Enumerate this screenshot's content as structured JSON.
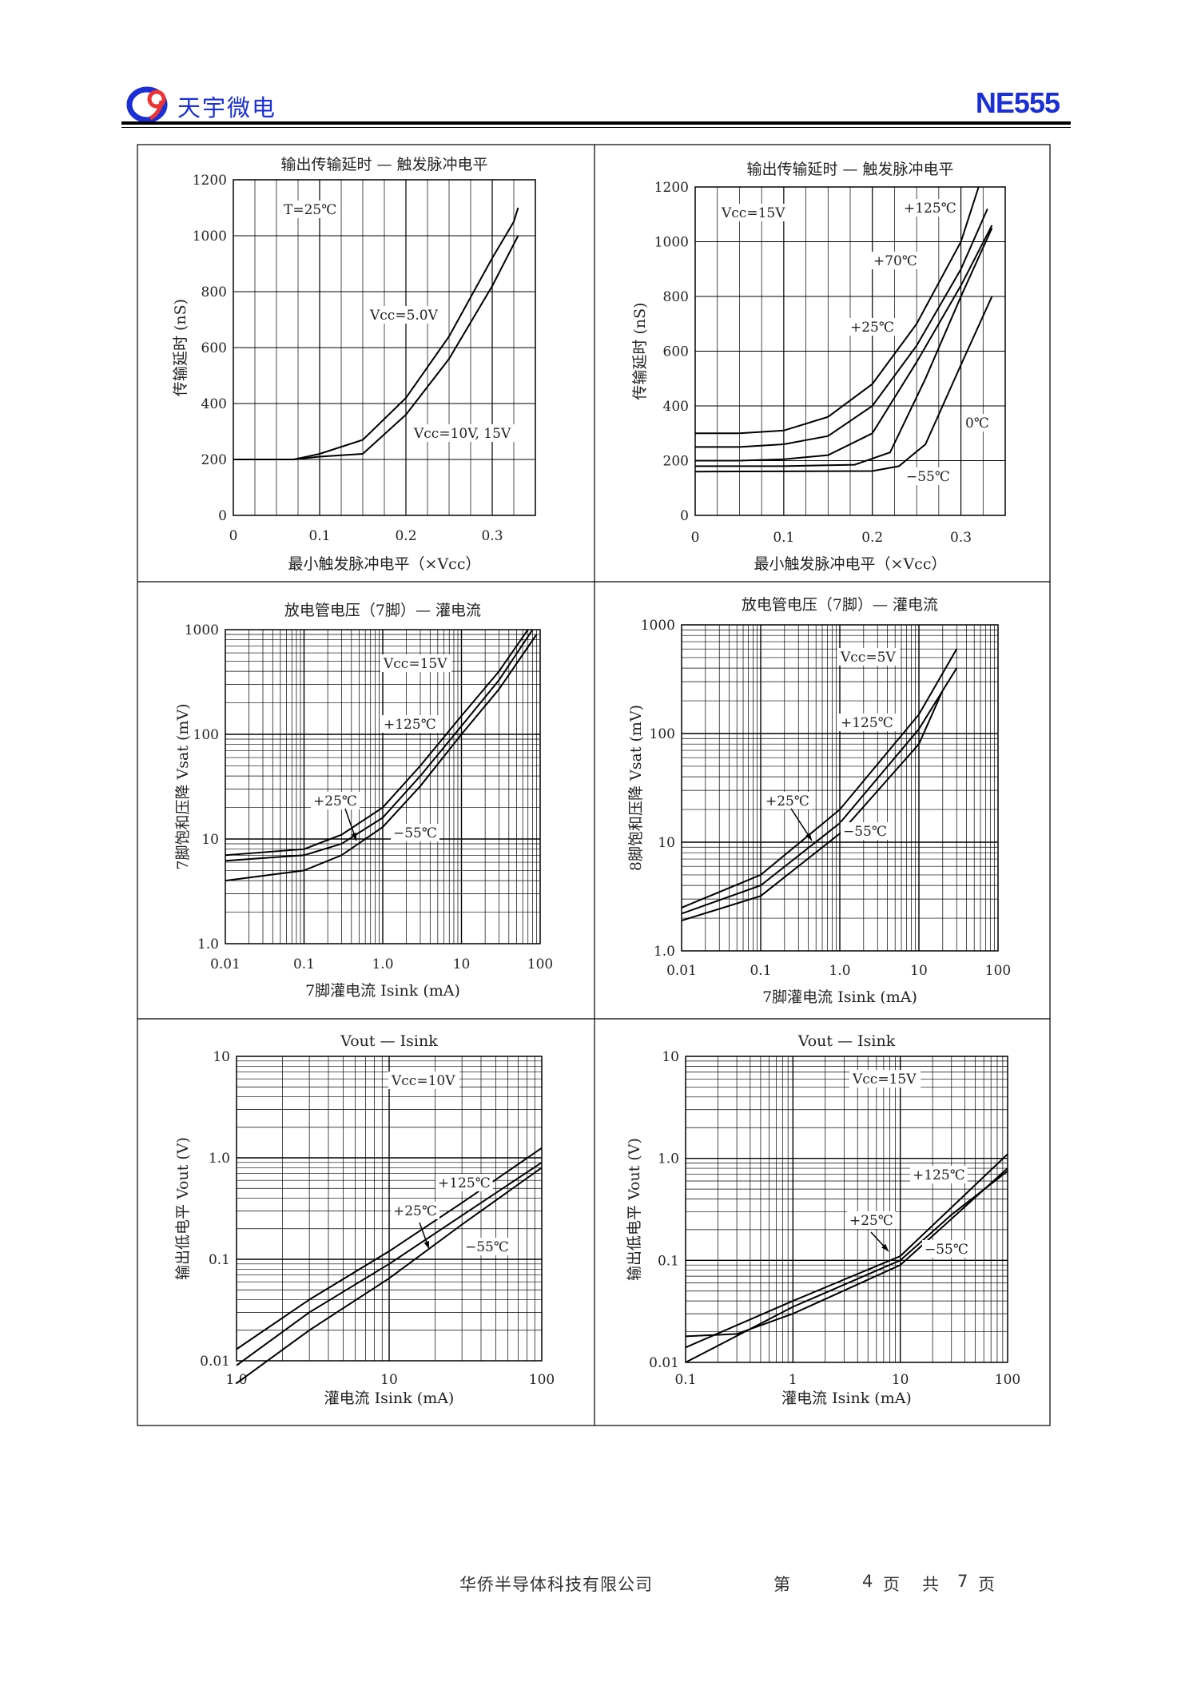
{
  "header": {
    "company": "天宇微电",
    "model": "NE555",
    "logo_icon": "company-logo-icon",
    "brand_color": "#1a2fd6"
  },
  "footer": {
    "text": "华侨半导体科技有限公司",
    "page_prefix": "第",
    "page": "4",
    "page_unit": "页",
    "total_prefix": "共",
    "total": "7",
    "total_unit": "页"
  },
  "chart_data": [
    {
      "type": "line",
      "title": "输出传输延时 — 触发脉冲电平",
      "xlabel": "最小触发脉冲电平（×Vcc）",
      "ylabel": "传输延时 (nS)",
      "xscale": "linear",
      "yscale": "linear",
      "xlim": [
        0,
        0.35
      ],
      "ylim": [
        0,
        1200
      ],
      "xticks": [
        "0",
        "0.1",
        "0.2",
        "0.3"
      ],
      "yticks": [
        "0",
        "200",
        "400",
        "600",
        "800",
        "1000",
        "1200"
      ],
      "condition": "T=25℃",
      "series": [
        {
          "name": "Vcc=5.0V",
          "points": [
            [
              0,
              200
            ],
            [
              0.07,
              200
            ],
            [
              0.1,
              220
            ],
            [
              0.15,
              270
            ],
            [
              0.2,
              420
            ],
            [
              0.25,
              640
            ],
            [
              0.3,
              920
            ],
            [
              0.325,
              1050
            ],
            [
              0.33,
              1100
            ]
          ]
        },
        {
          "name": "Vcc=10V, 15V",
          "points": [
            [
              0,
              200
            ],
            [
              0.07,
              200
            ],
            [
              0.1,
              210
            ],
            [
              0.15,
              220
            ],
            [
              0.2,
              360
            ],
            [
              0.25,
              560
            ],
            [
              0.3,
              820
            ],
            [
              0.33,
              1000
            ]
          ]
        }
      ]
    },
    {
      "type": "line",
      "title": "输出传输延时 — 触发脉冲电平",
      "xlabel": "最小触发脉冲电平（×Vcc）",
      "ylabel": "传输延时 (nS)",
      "xscale": "linear",
      "yscale": "linear",
      "xlim": [
        0,
        0.35
      ],
      "ylim": [
        0,
        1200
      ],
      "xticks": [
        "0",
        "0.1",
        "0.2",
        "0.3"
      ],
      "yticks": [
        "0",
        "200",
        "400",
        "600",
        "800",
        "1000",
        "1200"
      ],
      "condition": "Vcc=15V",
      "series": [
        {
          "name": "+125℃",
          "points": [
            [
              0,
              300
            ],
            [
              0.05,
              300
            ],
            [
              0.1,
              310
            ],
            [
              0.15,
              360
            ],
            [
              0.2,
              480
            ],
            [
              0.25,
              700
            ],
            [
              0.3,
              1000
            ],
            [
              0.32,
              1200
            ]
          ]
        },
        {
          "name": "+70℃",
          "points": [
            [
              0,
              250
            ],
            [
              0.05,
              250
            ],
            [
              0.1,
              260
            ],
            [
              0.15,
              290
            ],
            [
              0.2,
              400
            ],
            [
              0.25,
              620
            ],
            [
              0.3,
              900
            ],
            [
              0.33,
              1120
            ]
          ]
        },
        {
          "name": "+25℃",
          "points": [
            [
              0,
              200
            ],
            [
              0.05,
              200
            ],
            [
              0.1,
              205
            ],
            [
              0.15,
              220
            ],
            [
              0.2,
              300
            ],
            [
              0.25,
              560
            ],
            [
              0.3,
              840
            ],
            [
              0.335,
              1060
            ]
          ]
        },
        {
          "name": "0℃",
          "points": [
            [
              0,
              180
            ],
            [
              0.1,
              180
            ],
            [
              0.18,
              185
            ],
            [
              0.22,
              230
            ],
            [
              0.26,
              500
            ],
            [
              0.3,
              800
            ],
            [
              0.335,
              1050
            ]
          ]
        },
        {
          "name": "−55℃",
          "points": [
            [
              0,
              160
            ],
            [
              0.2,
              162
            ],
            [
              0.23,
              180
            ],
            [
              0.26,
              260
            ],
            [
              0.3,
              550
            ],
            [
              0.335,
              800
            ]
          ]
        }
      ]
    },
    {
      "type": "line",
      "title": "放电管电压（7脚）— 灌电流",
      "xlabel": "7脚灌电流 Isink  (mA)",
      "ylabel": "7脚饱和压降 Vsat  (mV)",
      "xscale": "log",
      "yscale": "log",
      "xlim": [
        0.01,
        100
      ],
      "ylim": [
        1,
        1000
      ],
      "xticks": [
        "0.01",
        "0.1",
        "1.0",
        "10",
        "100"
      ],
      "yticks": [
        "1.0",
        "10",
        "100",
        "1000"
      ],
      "condition": "Vcc=15V",
      "series": [
        {
          "name": "+125℃",
          "points": [
            [
              0.01,
              7
            ],
            [
              0.1,
              8
            ],
            [
              0.3,
              11
            ],
            [
              1,
              20
            ],
            [
              3,
              50
            ],
            [
              10,
              150
            ],
            [
              30,
              400
            ],
            [
              70,
              1000
            ]
          ]
        },
        {
          "name": "+25℃",
          "points": [
            [
              0.01,
              6.2
            ],
            [
              0.1,
              7
            ],
            [
              0.3,
              9
            ],
            [
              1,
              16
            ],
            [
              3,
              40
            ],
            [
              10,
              120
            ],
            [
              30,
              330
            ],
            [
              80,
              1000
            ]
          ]
        },
        {
          "name": "−55℃",
          "points": [
            [
              0.01,
              4
            ],
            [
              0.1,
              5
            ],
            [
              0.3,
              7
            ],
            [
              1,
              13
            ],
            [
              3,
              32
            ],
            [
              10,
              100
            ],
            [
              30,
              270
            ],
            [
              90,
              900
            ]
          ]
        }
      ]
    },
    {
      "type": "line",
      "title": "放电管电压（7脚）— 灌电流",
      "xlabel": "7脚灌电流 Isink  (mA)",
      "ylabel": "8脚饱和压降 Vsat  (mV)",
      "xscale": "log",
      "yscale": "log",
      "xlim": [
        0.01,
        100
      ],
      "ylim": [
        1,
        1000
      ],
      "xticks": [
        "0.01",
        "0.1",
        "1.0",
        "10",
        "100"
      ],
      "yticks": [
        "1.0",
        "10",
        "100",
        "1000"
      ],
      "condition": "Vcc=5V",
      "series": [
        {
          "name": "+125℃",
          "points": [
            [
              0.01,
              2.5
            ],
            [
              0.1,
              5
            ],
            [
              1,
              20
            ],
            [
              10,
              150
            ],
            [
              30,
              600
            ]
          ]
        },
        {
          "name": "+25℃",
          "points": [
            [
              0.01,
              2.2
            ],
            [
              0.1,
              4
            ],
            [
              1,
              15
            ],
            [
              10,
              110
            ],
            [
              30,
              400
            ]
          ]
        },
        {
          "name": "−55℃",
          "points": [
            [
              0.01,
              1.9
            ],
            [
              0.1,
              3.2
            ],
            [
              1,
              12
            ],
            [
              10,
              80
            ],
            [
              20,
              250
            ]
          ]
        }
      ]
    },
    {
      "type": "line",
      "title": "Vout — Isink",
      "xlabel": "灌电流 Isink  (mA)",
      "ylabel": "输出低电平 Vout  (V)",
      "xscale": "log",
      "yscale": "log",
      "xlim": [
        1,
        100
      ],
      "ylim": [
        0.01,
        10
      ],
      "xticks": [
        "1.0",
        "10",
        "100"
      ],
      "yticks": [
        "0.01",
        "0.1",
        "1.0",
        "10"
      ],
      "condition": "Vcc=10V",
      "series": [
        {
          "name": "+125℃",
          "points": [
            [
              1,
              0.013
            ],
            [
              3,
              0.04
            ],
            [
              10,
              0.12
            ],
            [
              30,
              0.36
            ],
            [
              100,
              1.25
            ]
          ]
        },
        {
          "name": "+25℃",
          "points": [
            [
              1,
              0.009
            ],
            [
              3,
              0.03
            ],
            [
              10,
              0.09
            ],
            [
              30,
              0.27
            ],
            [
              100,
              0.9
            ]
          ]
        },
        {
          "name": "−55℃",
          "points": [
            [
              1,
              0.006
            ],
            [
              3,
              0.02
            ],
            [
              10,
              0.065
            ],
            [
              30,
              0.22
            ],
            [
              100,
              0.8
            ]
          ]
        }
      ]
    },
    {
      "type": "line",
      "title": "Vout — Isink",
      "xlabel": "灌电流 Isink  (mA)",
      "ylabel": "输出低电平 Vout  (V)",
      "xscale": "log",
      "yscale": "log",
      "xlim": [
        0.1,
        100
      ],
      "ylim": [
        0.01,
        10
      ],
      "xticks": [
        "0.1",
        "1",
        "10",
        "100"
      ],
      "yticks": [
        "0.01",
        "0.1",
        "1.0",
        "10"
      ],
      "condition": "Vcc=15V",
      "series": [
        {
          "name": "+125℃",
          "points": [
            [
              0.1,
              0.014
            ],
            [
              1,
              0.04
            ],
            [
              10,
              0.11
            ],
            [
              100,
              1.1
            ]
          ]
        },
        {
          "name": "+25℃",
          "points": [
            [
              0.1,
              0.018
            ],
            [
              0.3,
              0.019
            ],
            [
              1,
              0.03
            ],
            [
              10,
              0.09
            ],
            [
              100,
              0.8
            ]
          ]
        },
        {
          "name": "−55℃",
          "points": [
            [
              0.1,
              0.01
            ],
            [
              1,
              0.035
            ],
            [
              10,
              0.1
            ],
            [
              30,
              0.28
            ],
            [
              100,
              0.75
            ]
          ]
        }
      ]
    }
  ]
}
